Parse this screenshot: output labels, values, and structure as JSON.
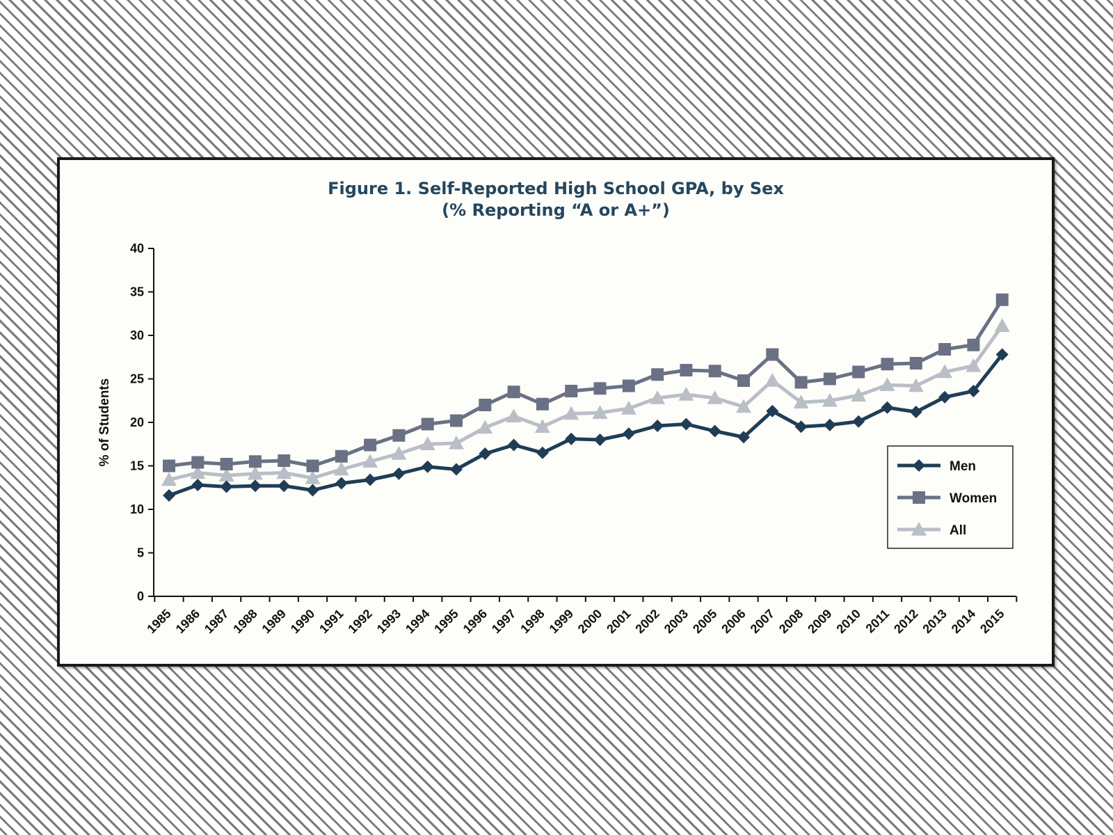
{
  "chart_data": {
    "type": "line",
    "title": "Figure 1. Self-Reported High School GPA, by Sex",
    "subtitle": "(% Reporting “A or A+”)",
    "xlabel": "",
    "ylabel": "% of Students",
    "ylim": [
      0,
      40
    ],
    "yticks": [
      "0",
      "5",
      "10",
      "15",
      "20",
      "25",
      "30",
      "35",
      "40"
    ],
    "categories": [
      "1985",
      "1986",
      "1987",
      "1988",
      "1989",
      "1990",
      "1991",
      "1992",
      "1993",
      "1994",
      "1995",
      "1996",
      "1997",
      "1998",
      "1999",
      "2000",
      "2001",
      "2002",
      "2003",
      "2005",
      "2006",
      "2007",
      "2008",
      "2009",
      "2010",
      "2011",
      "2012",
      "2013",
      "2014",
      "2015"
    ],
    "grid": false,
    "legend_position": "right",
    "series": [
      {
        "name": "Men",
        "marker": "diamond",
        "color": "#1f3d55",
        "values": [
          11.6,
          12.8,
          12.6,
          12.7,
          12.7,
          12.2,
          13.0,
          13.4,
          14.1,
          14.9,
          14.6,
          16.4,
          17.4,
          16.5,
          18.1,
          18.0,
          18.7,
          19.6,
          19.8,
          19.0,
          18.3,
          21.3,
          19.5,
          19.7,
          20.1,
          21.7,
          21.2,
          22.9,
          23.6,
          27.8
        ]
      },
      {
        "name": "Women",
        "marker": "square",
        "color": "#6a7185",
        "values": [
          15.0,
          15.4,
          15.2,
          15.5,
          15.6,
          15.0,
          16.1,
          17.4,
          18.5,
          19.8,
          20.2,
          22.0,
          23.5,
          22.1,
          23.6,
          23.9,
          24.2,
          25.5,
          26.0,
          25.9,
          24.8,
          27.8,
          24.6,
          25.0,
          25.8,
          26.7,
          26.8,
          28.4,
          28.9,
          34.1
        ]
      },
      {
        "name": "All",
        "marker": "triangle",
        "color": "#b9bec7",
        "values": [
          13.4,
          14.2,
          13.9,
          14.1,
          14.2,
          13.6,
          14.6,
          15.5,
          16.4,
          17.5,
          17.6,
          19.4,
          20.7,
          19.5,
          21.0,
          21.1,
          21.6,
          22.8,
          23.2,
          22.8,
          21.8,
          24.8,
          22.3,
          22.5,
          23.1,
          24.3,
          24.2,
          25.8,
          26.5,
          31.1
        ]
      }
    ]
  }
}
